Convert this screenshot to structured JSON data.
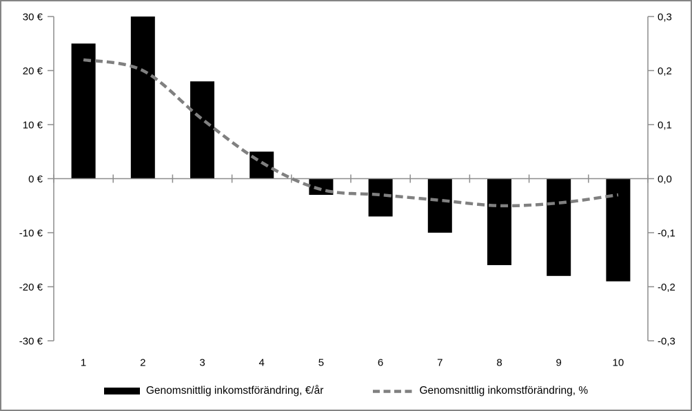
{
  "chart_data": {
    "type": "combo-bar-line",
    "categories": [
      "1",
      "2",
      "3",
      "4",
      "5",
      "6",
      "7",
      "8",
      "9",
      "10"
    ],
    "series": [
      {
        "name": "Genomsnittlig inkomstförändring, €/år",
        "type": "bar",
        "axis": "left",
        "color": "#000000",
        "values": [
          25,
          30,
          18,
          5,
          -3,
          -7,
          -10,
          -16,
          -18,
          -19
        ]
      },
      {
        "name": "Genomsnittlig inkomstförändring, %",
        "type": "line",
        "axis": "right",
        "color": "#808080",
        "dashed": true,
        "smooth": true,
        "values": [
          0.22,
          0.2,
          0.11,
          0.03,
          -0.02,
          -0.03,
          -0.04,
          -0.05,
          -0.045,
          -0.03
        ]
      }
    ],
    "left_axis": {
      "min": -30,
      "max": 30,
      "tick_step": 10,
      "tick_labels": [
        "30 €",
        "20 €",
        "10 €",
        "0 €",
        "-10 €",
        "-20 €",
        "-30 €"
      ]
    },
    "right_axis": {
      "min": -0.3,
      "max": 0.3,
      "tick_step": 0.1,
      "tick_labels": [
        "0,3",
        "0,2",
        "0,1",
        "0,0",
        "-0,1",
        "-0,2",
        "-0,3"
      ]
    },
    "grid": false,
    "legend_position": "bottom"
  },
  "legend": {
    "items": [
      {
        "label": "Genomsnittlig inkomstförändring, €/år",
        "swatch": "black-bar"
      },
      {
        "label": "Genomsnittlig inkomstförändring, %",
        "swatch": "gray-dashed-line"
      }
    ]
  },
  "colors": {
    "bar": "#000000",
    "line": "#808080",
    "axis": "#8c8c8c",
    "text": "#000000",
    "background": "#ffffff",
    "border": "#848484"
  }
}
